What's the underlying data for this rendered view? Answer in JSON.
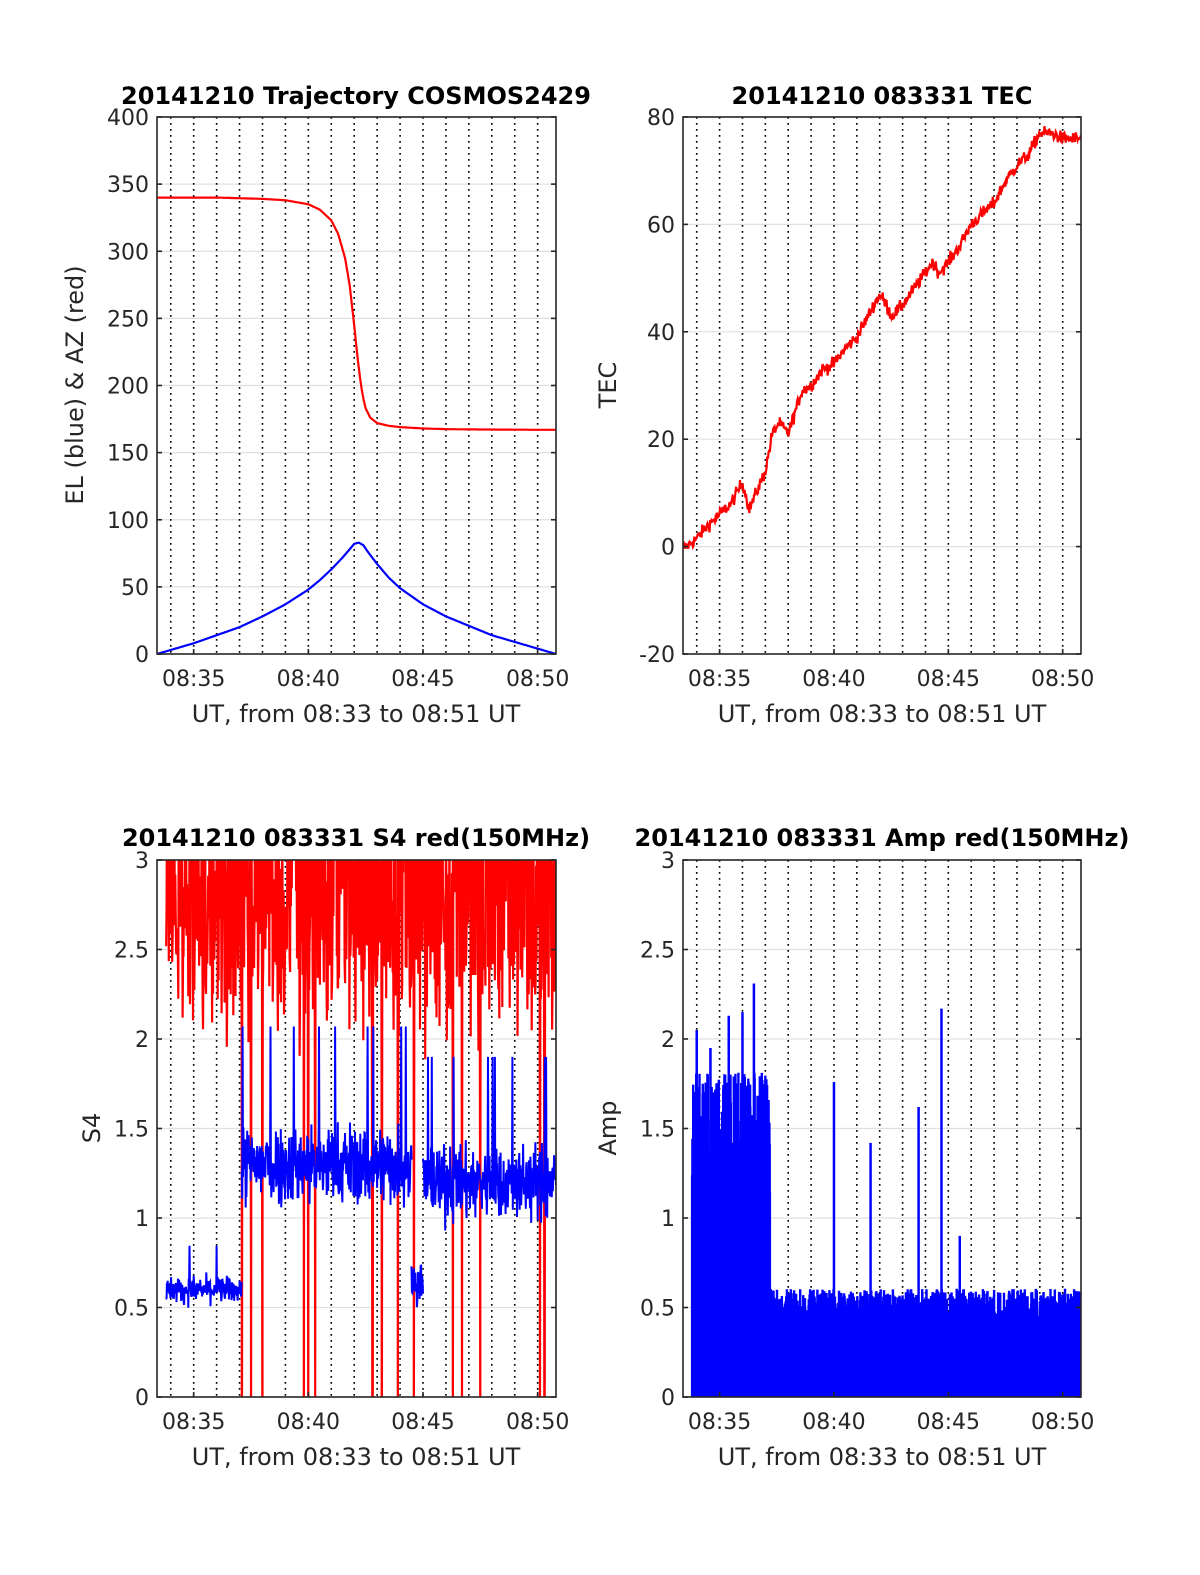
{
  "figure": {
    "background": "#ffffff"
  },
  "chart_data": [
    {
      "id": "trajectory",
      "type": "line",
      "title": "20141210 Trajectory COSMOS2429",
      "xlabel": "UT, from 08:33 to 08:51 UT",
      "ylabel": "EL (blue) & AZ (red)",
      "xlim": [
        33.4,
        50.8
      ],
      "ylim": [
        0,
        400
      ],
      "x_tick_values": [
        35,
        40,
        45,
        50
      ],
      "x_tick_labels": [
        "08:35",
        "08:40",
        "08:45",
        "08:50"
      ],
      "y_ticks": [
        0,
        50,
        100,
        150,
        200,
        250,
        300,
        350,
        400
      ],
      "grid": true,
      "vertical_dotted_grid_minutes": [
        34,
        35,
        36,
        37,
        38,
        39,
        40,
        41,
        42,
        43,
        44,
        45,
        46,
        47,
        48,
        49,
        50
      ],
      "series": [
        {
          "color": "#ff0000",
          "x": [
            33.4,
            34,
            35,
            36,
            37,
            38,
            39,
            40,
            40.5,
            41,
            41.3,
            41.6,
            41.8,
            42.0,
            42.1,
            42.2,
            42.3,
            42.4,
            42.5,
            42.7,
            43.0,
            43.5,
            44,
            45,
            46,
            47,
            48,
            49,
            50,
            50.8
          ],
          "y": [
            340,
            340,
            340,
            340,
            339.5,
            339,
            338,
            335,
            331,
            323,
            313,
            295,
            275,
            245,
            228,
            213,
            200,
            190,
            183,
            176,
            172,
            170,
            169,
            168,
            167.5,
            167.3,
            167.2,
            167.1,
            167,
            167
          ]
        },
        {
          "color": "#0000ff",
          "x": [
            33.4,
            34,
            35,
            36,
            37,
            38,
            39,
            40,
            40.5,
            41,
            41.5,
            41.8,
            42.0,
            42.2,
            42.4,
            42.6,
            43,
            43.5,
            44,
            45,
            46,
            47,
            48,
            49,
            50,
            50.8
          ],
          "y": [
            0,
            3,
            8,
            14,
            20,
            28,
            37,
            48,
            55,
            63,
            72,
            78,
            82,
            83,
            81,
            76,
            67,
            57,
            49,
            37,
            28,
            21,
            14,
            9,
            4,
            0
          ]
        }
      ]
    },
    {
      "id": "tec",
      "type": "line",
      "title": "20141210 083331 TEC",
      "xlabel": "UT, from 08:33 to 08:51 UT",
      "ylabel": "TEC",
      "xlim": [
        33.4,
        50.8
      ],
      "ylim": [
        -20,
        80
      ],
      "x_tick_values": [
        35,
        40,
        45,
        50
      ],
      "x_tick_labels": [
        "08:35",
        "08:40",
        "08:45",
        "08:50"
      ],
      "y_ticks": [
        -20,
        0,
        20,
        40,
        60,
        80
      ],
      "grid": true,
      "vertical_dotted_grid_minutes": [
        34,
        35,
        36,
        37,
        38,
        39,
        40,
        41,
        42,
        43,
        44,
        45,
        46,
        47,
        48,
        49,
        50
      ],
      "series": [
        {
          "color": "#ff0000",
          "noise": 1.2,
          "x": [
            33.4,
            34,
            34.5,
            35,
            35.5,
            36,
            36.3,
            36.8,
            37,
            37.3,
            37.6,
            38,
            38.3,
            38.6,
            39,
            39.5,
            40,
            40.5,
            41,
            41.5,
            42,
            42.3,
            42.5,
            42.8,
            43,
            43.5,
            44,
            44.3,
            44.6,
            45,
            45.5,
            46,
            46.5,
            47,
            47.5,
            48,
            48.5,
            49,
            49.5,
            50,
            50.8
          ],
          "y": [
            -0.5,
            1.5,
            4,
            6,
            8,
            12,
            7,
            12,
            14,
            21,
            23,
            21,
            25,
            29,
            30,
            33,
            34,
            37,
            39,
            43,
            47,
            45,
            43,
            44,
            45,
            48,
            51,
            53,
            51,
            53,
            56,
            60,
            62,
            64,
            68,
            71,
            73,
            77,
            77,
            76,
            76
          ]
        }
      ]
    },
    {
      "id": "s4",
      "type": "line",
      "title": "20141210 083331 S4 red(150MHz)",
      "xlabel": "UT, from 08:33 to 08:51 UT",
      "ylabel": "S4",
      "xlim": [
        33.4,
        50.8
      ],
      "ylim": [
        0,
        3
      ],
      "x_tick_values": [
        35,
        40,
        45,
        50
      ],
      "x_tick_labels": [
        "08:35",
        "08:40",
        "08:45",
        "08:50"
      ],
      "y_ticks": [
        0,
        0.5,
        1,
        1.5,
        2,
        2.5,
        3
      ],
      "y_tick_labels": [
        "0",
        "0.5",
        "1",
        "1.5",
        "2",
        "2.5",
        "3"
      ],
      "grid": true,
      "vertical_dotted_grid_minutes": [
        34,
        35,
        36,
        37,
        38,
        39,
        40,
        41,
        42,
        43,
        44,
        45,
        46,
        47,
        48,
        49,
        50
      ],
      "series": [
        {
          "color": "#ff0000",
          "style": "noisy-saturated",
          "x_range": [
            33.8,
            50.8
          ],
          "baseline": 2.6,
          "min": 1.3,
          "max": 3.0,
          "drops_to_zero_at_minutes": [
            37.1,
            37.5,
            38.0,
            39.8,
            40.0,
            40.3,
            42.8,
            43.2,
            43.9,
            44.6,
            46.3,
            46.7,
            47.5,
            50.1,
            50.3
          ]
        },
        {
          "color": "#0000ff",
          "style": "noisy",
          "segments": [
            {
              "x_range": [
                33.8,
                37.1
              ],
              "mean": 0.6,
              "spread": 0.07
            },
            {
              "x_range": [
                37.1,
                44.5
              ],
              "mean": 1.3,
              "spread": 0.22
            },
            {
              "x_range": [
                44.5,
                45.0
              ],
              "mean": 0.65,
              "spread": 0.12
            },
            {
              "x_range": [
                45.0,
                50.8
              ],
              "mean": 1.2,
              "spread": 0.2
            }
          ],
          "peak_max": 2.3
        }
      ]
    },
    {
      "id": "amp",
      "type": "line",
      "title": "20141210 083331 Amp red(150MHz)",
      "xlabel": "UT, from 08:33 to 08:51 UT",
      "ylabel": "Amp",
      "xlim": [
        33.4,
        50.8
      ],
      "ylim": [
        0,
        3
      ],
      "x_tick_values": [
        35,
        40,
        45,
        50
      ],
      "x_tick_labels": [
        "08:35",
        "08:40",
        "08:45",
        "08:50"
      ],
      "y_ticks": [
        0,
        0.5,
        1,
        1.5,
        2,
        2.5,
        3
      ],
      "y_tick_labels": [
        "0",
        "0.5",
        "1",
        "1.5",
        "2",
        "2.5",
        "3"
      ],
      "grid": true,
      "vertical_dotted_grid_minutes": [
        34,
        35,
        36,
        37,
        38,
        39,
        40,
        41,
        42,
        43,
        44,
        45,
        46,
        47,
        48,
        49,
        50
      ],
      "series": [
        {
          "color": "#0000ff",
          "style": "filled-noise",
          "segments": [
            {
              "x_range": [
                33.8,
                37.2
              ],
              "envelope": 1.65
            },
            {
              "x_range": [
                37.2,
                50.8
              ],
              "envelope": 0.55
            }
          ],
          "spikes": [
            {
              "x": 34.0,
              "y": 2.05
            },
            {
              "x": 34.6,
              "y": 1.95
            },
            {
              "x": 35.4,
              "y": 2.13
            },
            {
              "x": 36.0,
              "y": 2.15
            },
            {
              "x": 36.5,
              "y": 2.31
            },
            {
              "x": 40.0,
              "y": 1.76
            },
            {
              "x": 41.6,
              "y": 1.42
            },
            {
              "x": 43.7,
              "y": 1.62
            },
            {
              "x": 44.7,
              "y": 2.17
            },
            {
              "x": 45.5,
              "y": 0.9
            }
          ]
        }
      ]
    }
  ]
}
